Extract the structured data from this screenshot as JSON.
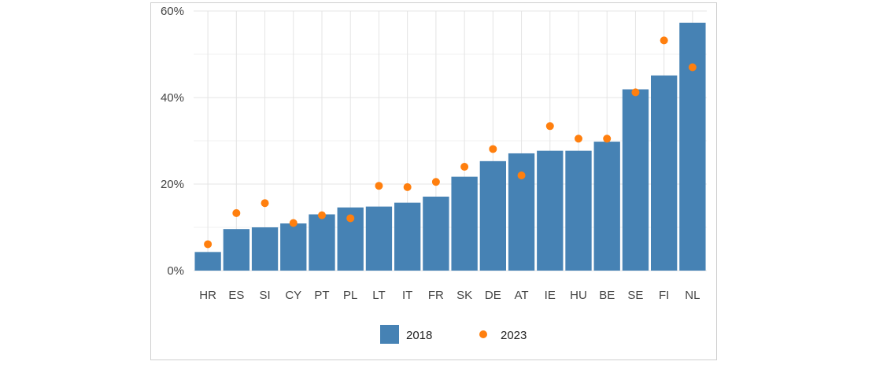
{
  "chart_data": {
    "type": "bar",
    "title": "",
    "xlabel": "",
    "ylabel": "",
    "categories": [
      "HR",
      "ES",
      "SI",
      "CY",
      "PT",
      "PL",
      "LT",
      "IT",
      "FR",
      "SK",
      "DE",
      "AT",
      "IE",
      "HU",
      "BE",
      "SE",
      "FI",
      "NL"
    ],
    "series": [
      {
        "name": "2018",
        "type": "bar",
        "color": "#4682b4",
        "values": [
          4.3,
          9.6,
          10.0,
          10.9,
          13.0,
          14.6,
          14.8,
          15.7,
          17.1,
          21.7,
          25.3,
          27.1,
          27.7,
          27.7,
          29.8,
          41.9,
          45.1,
          57.3
        ]
      },
      {
        "name": "2023",
        "type": "scatter",
        "color": "#ff7f0e",
        "values": [
          6.1,
          13.3,
          15.6,
          11.0,
          12.8,
          12.1,
          19.6,
          19.3,
          20.5,
          24.0,
          28.1,
          22.0,
          33.4,
          30.5,
          30.5,
          41.2,
          53.2,
          47.0
        ]
      }
    ],
    "ylim": [
      0,
      60
    ],
    "yticks": [
      0,
      20,
      40,
      60
    ],
    "ytick_labels": [
      "0%",
      "20%",
      "40%",
      "60%"
    ],
    "grid": true,
    "legend": "bottom"
  }
}
